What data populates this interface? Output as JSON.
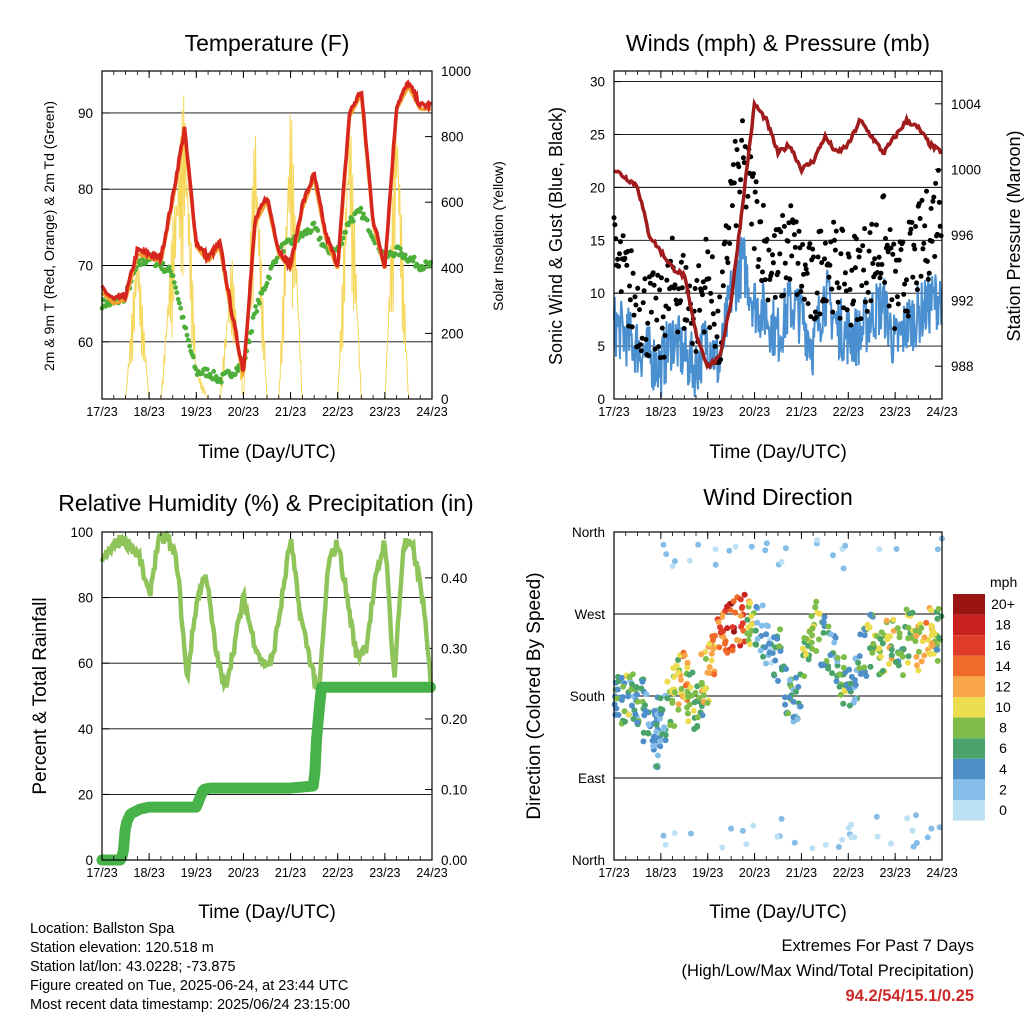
{
  "panels": {
    "temperature": {
      "title": "Temperature (F)",
      "xlabel": "Time (Day/UTC)",
      "ylabel_left": "2m & 9m T (Red, Orange) & 2m Td (Green)",
      "ylabel_right": "Solar Insolation (Yellow)"
    },
    "winds": {
      "title": "Winds (mph) & Pressure (mb)",
      "xlabel": "Time (Day/UTC)",
      "ylabel_left": "Sonic Wind & Gust (Blue, Black)",
      "ylabel_right": "Station Pressure (Maroon)"
    },
    "humidity": {
      "title": "Relative Humidity (%) & Precipitation (in)",
      "xlabel": "Time (Day/UTC)",
      "ylabel_left": "Percent & Total Rainfall"
    },
    "direction": {
      "title": "Wind Direction",
      "xlabel": "Time (Day/UTC)",
      "ylabel_left": "Direction (Colored By Speed)",
      "legend_title": "mph"
    }
  },
  "footer": {
    "location": "Location: Ballston Spa",
    "elevation": "Station elevation: 120.518 m",
    "latlon": "Station lat/lon: 43.0228; -73.875",
    "created": "Figure created on Tue, 2025-06-24, at 23:44 UTC",
    "recent": "Most recent data timestamp: 2025/06/24 23:15:00"
  },
  "extremes": {
    "line1": "Extremes For Past 7 Days",
    "line2": "(High/Low/Max Wind/Total Precipitation)",
    "values": "94.2/54/15.1/0.25"
  },
  "chart_data": [
    {
      "type": "line",
      "title": "Temperature (F)",
      "xlabel": "Time (Day/UTC)",
      "ylabel": "2m & 9m T (Red, Orange) & 2m Td (Green)",
      "y2label": "Solar Insolation (Yellow)",
      "x_ticks": [
        "17/23",
        "18/23",
        "19/23",
        "20/23",
        "21/23",
        "22/23",
        "23/23",
        "24/23"
      ],
      "ylim": [
        52.5,
        95.5
      ],
      "y_ticks": [
        60,
        70,
        80,
        90
      ],
      "y2lim": [
        0,
        1000
      ],
      "y2_ticks": [
        0,
        200,
        400,
        600,
        800,
        1000
      ],
      "grid": true,
      "colors": {
        "temp_2m": "#d7261e",
        "temp_9m": "#f4a02d",
        "dewpoint": "#4daf3a",
        "solar": "#f5d75a"
      },
      "x": [
        0,
        0.25,
        0.5,
        0.75,
        1.0,
        1.25,
        1.5,
        1.75,
        2.0,
        2.25,
        2.5,
        2.75,
        3.0,
        3.25,
        3.5,
        3.75,
        4.0,
        4.25,
        4.5,
        4.75,
        5.0,
        5.25,
        5.5,
        5.75,
        6.0,
        6.25,
        6.5,
        6.75,
        7.0
      ],
      "series": [
        {
          "name": "2m T",
          "values": [
            67,
            65.5,
            66,
            72,
            71.5,
            71,
            79,
            88,
            73,
            71,
            73,
            64,
            56,
            76,
            79,
            72,
            70,
            78,
            82,
            74,
            70,
            90,
            93,
            76,
            70,
            91,
            94,
            91,
            91
          ]
        },
        {
          "name": "2m Td",
          "values": [
            65,
            65,
            66,
            70,
            71,
            70,
            69,
            62,
            56,
            56,
            55,
            56,
            57,
            64,
            68,
            72,
            73,
            74,
            75,
            72,
            72,
            76,
            77,
            74,
            71,
            72,
            71,
            70,
            70
          ]
        },
        {
          "name": "Solar",
          "axis": "right",
          "values": [
            0,
            0,
            0,
            500,
            0,
            0,
            550,
            970,
            100,
            0,
            0,
            450,
            0,
            880,
            0,
            0,
            950,
            0,
            0,
            0,
            0,
            950,
            0,
            0,
            0,
            970,
            0,
            0,
            0
          ]
        }
      ]
    },
    {
      "type": "line",
      "title": "Winds (mph) & Pressure (mb)",
      "xlabel": "Time (Day/UTC)",
      "ylabel": "Sonic Wind & Gust (Blue, Black)",
      "y2label": "Station Pressure (Maroon)",
      "x_ticks": [
        "17/23",
        "18/23",
        "19/23",
        "20/23",
        "21/23",
        "22/23",
        "23/23",
        "24/23"
      ],
      "ylim": [
        0,
        31
      ],
      "y_ticks": [
        0,
        5,
        10,
        15,
        20,
        25,
        30
      ],
      "y2lim": [
        986,
        1006
      ],
      "y2_ticks": [
        988,
        992,
        996,
        1000,
        1004
      ],
      "grid": true,
      "colors": {
        "wind": "#4a90d0",
        "gust": "#000000",
        "pressure": "#a01b1b"
      },
      "x": [
        0,
        0.25,
        0.5,
        0.75,
        1.0,
        1.25,
        1.5,
        1.75,
        2.0,
        2.25,
        2.5,
        2.75,
        3.0,
        3.25,
        3.5,
        3.75,
        4.0,
        4.25,
        4.5,
        4.75,
        5.0,
        5.25,
        5.5,
        5.75,
        6.0,
        6.25,
        6.5,
        6.75,
        7.0
      ],
      "series": [
        {
          "name": "Wind",
          "values": [
            7,
            6,
            5,
            4,
            3,
            6,
            4,
            3,
            6,
            3,
            10,
            13,
            9,
            8,
            6,
            9,
            8,
            5,
            10,
            7,
            6,
            6,
            8,
            9,
            5,
            7,
            8,
            9,
            10
          ]
        },
        {
          "name": "Gust",
          "values": [
            13,
            11,
            9,
            8,
            7,
            11,
            10,
            8,
            12,
            5,
            19,
            22,
            18,
            14,
            12,
            15,
            12,
            10,
            14,
            12,
            11,
            12,
            13,
            15,
            10,
            12,
            14,
            16,
            20
          ]
        },
        {
          "name": "Pressure",
          "axis": "right",
          "values": [
            1000,
            999.5,
            999,
            996,
            995,
            994,
            993.5,
            990,
            988,
            988.5,
            992,
            998,
            1004,
            1003,
            1001,
            1001.5,
            1000,
            1000.5,
            1002,
            1001,
            1001.5,
            1003,
            1002,
            1001,
            1002,
            1003,
            1002.5,
            1001.5,
            1001
          ]
        }
      ]
    },
    {
      "type": "line",
      "title": "Relative Humidity (%) & Precipitation (in)",
      "xlabel": "Time (Day/UTC)",
      "ylabel": "Percent & Total Rainfall",
      "x_ticks": [
        "17/23",
        "18/23",
        "19/23",
        "20/23",
        "21/23",
        "22/23",
        "23/23",
        "24/23"
      ],
      "ylim": [
        0,
        100
      ],
      "y_ticks": [
        0,
        20,
        40,
        60,
        80,
        100
      ],
      "y2lim": [
        0,
        0.465
      ],
      "y2_ticks": [
        "0.00",
        "0.10",
        "0.20",
        "0.30",
        "0.40"
      ],
      "grid": true,
      "colors": {
        "rh": "#8fc45a",
        "precip": "#47b249"
      },
      "series": [
        {
          "name": "RH",
          "x": [
            0,
            0.2,
            0.4,
            0.6,
            0.8,
            1.0,
            1.2,
            1.4,
            1.6,
            1.8,
            2.0,
            2.2,
            2.4,
            2.6,
            2.8,
            3.0,
            3.2,
            3.4,
            3.6,
            3.8,
            4.0,
            4.2,
            4.4,
            4.6,
            4.8,
            5.0,
            5.2,
            5.4,
            5.6,
            5.8,
            6.0,
            6.2,
            6.4,
            6.6,
            6.8,
            7.0
          ],
          "values": [
            91,
            95,
            98,
            96,
            92,
            80,
            98,
            98,
            90,
            55,
            78,
            88,
            65,
            52,
            65,
            80,
            68,
            60,
            60,
            78,
            98,
            75,
            62,
            50,
            90,
            97,
            80,
            62,
            65,
            85,
            98,
            55,
            97,
            95,
            80,
            50
          ]
        },
        {
          "name": "Precip",
          "axis": "right",
          "x": [
            0,
            0.4,
            0.45,
            0.5,
            0.6,
            0.8,
            1.0,
            2.0,
            2.15,
            2.3,
            3.0,
            4.0,
            4.5,
            4.55,
            4.65,
            5.0,
            6.0,
            7.0
          ],
          "values": [
            0,
            0,
            0.01,
            0.05,
            0.065,
            0.072,
            0.075,
            0.075,
            0.1,
            0.102,
            0.102,
            0.102,
            0.105,
            0.17,
            0.245,
            0.245,
            0.245,
            0.245
          ]
        }
      ]
    },
    {
      "type": "scatter",
      "title": "Wind Direction",
      "xlabel": "Time (Day/UTC)",
      "ylabel": "Direction (Colored By Speed)",
      "x_ticks": [
        "17/23",
        "18/23",
        "19/23",
        "20/23",
        "21/23",
        "22/23",
        "23/23",
        "24/23"
      ],
      "y_categories": [
        "North",
        "East",
        "South",
        "West",
        "North"
      ],
      "ylim": [
        0,
        360
      ],
      "grid": true,
      "legend": {
        "title": "mph",
        "labels": [
          "20+",
          "18",
          "16",
          "14",
          "12",
          "10",
          "8",
          "6",
          "4",
          "2",
          "0"
        ],
        "colors": [
          "#9b1414",
          "#c8221e",
          "#e03a2a",
          "#f06a2a",
          "#f9a64a",
          "#ecdc50",
          "#7fbd4a",
          "#4aa36a",
          "#4f8fc9",
          "#84bde8",
          "#bde1f4"
        ],
        "placement": "right"
      },
      "points": [
        {
          "x": 0.1,
          "dir": 180,
          "spd": 6
        },
        {
          "x": 0.25,
          "dir": 175,
          "spd": 7
        },
        {
          "x": 0.4,
          "dir": 182,
          "spd": 5
        },
        {
          "x": 0.55,
          "dir": 170,
          "spd": 6
        },
        {
          "x": 0.7,
          "dir": 160,
          "spd": 5
        },
        {
          "x": 0.85,
          "dir": 150,
          "spd": 4
        },
        {
          "x": 0.95,
          "dir": 130,
          "spd": 3
        },
        {
          "x": 1.05,
          "dir": 155,
          "spd": 4
        },
        {
          "x": 1.2,
          "dir": 175,
          "spd": 8
        },
        {
          "x": 1.35,
          "dir": 190,
          "spd": 9
        },
        {
          "x": 1.5,
          "dir": 200,
          "spd": 11
        },
        {
          "x": 1.65,
          "dir": 180,
          "spd": 8
        },
        {
          "x": 1.8,
          "dir": 170,
          "spd": 6
        },
        {
          "x": 1.95,
          "dir": 200,
          "spd": 10
        },
        {
          "x": 2.1,
          "dir": 230,
          "spd": 12
        },
        {
          "x": 2.3,
          "dir": 250,
          "spd": 14
        },
        {
          "x": 2.5,
          "dir": 255,
          "spd": 17
        },
        {
          "x": 2.7,
          "dir": 265,
          "spd": 15
        },
        {
          "x": 2.9,
          "dir": 260,
          "spd": 9
        },
        {
          "x": 3.1,
          "dir": 250,
          "spd": 4
        },
        {
          "x": 3.3,
          "dir": 240,
          "spd": 3
        },
        {
          "x": 3.5,
          "dir": 225,
          "spd": 6
        },
        {
          "x": 3.7,
          "dir": 190,
          "spd": 5
        },
        {
          "x": 3.9,
          "dir": 175,
          "spd": 4
        },
        {
          "x": 4.1,
          "dir": 230,
          "spd": 8
        },
        {
          "x": 4.3,
          "dir": 255,
          "spd": 9
        },
        {
          "x": 4.5,
          "dir": 240,
          "spd": 6
        },
        {
          "x": 4.7,
          "dir": 220,
          "spd": 5
        },
        {
          "x": 4.9,
          "dir": 200,
          "spd": 7
        },
        {
          "x": 5.1,
          "dir": 195,
          "spd": 4
        },
        {
          "x": 5.3,
          "dir": 230,
          "spd": 6
        },
        {
          "x": 5.5,
          "dir": 240,
          "spd": 7
        },
        {
          "x": 5.7,
          "dir": 225,
          "spd": 8
        },
        {
          "x": 5.9,
          "dir": 240,
          "spd": 9
        },
        {
          "x": 6.1,
          "dir": 230,
          "spd": 6
        },
        {
          "x": 6.3,
          "dir": 245,
          "spd": 8
        },
        {
          "x": 6.5,
          "dir": 235,
          "spd": 10
        },
        {
          "x": 6.7,
          "dir": 250,
          "spd": 12
        },
        {
          "x": 6.85,
          "dir": 245,
          "spd": 9
        },
        {
          "x": 6.95,
          "dir": 250,
          "spd": 6
        }
      ]
    }
  ]
}
